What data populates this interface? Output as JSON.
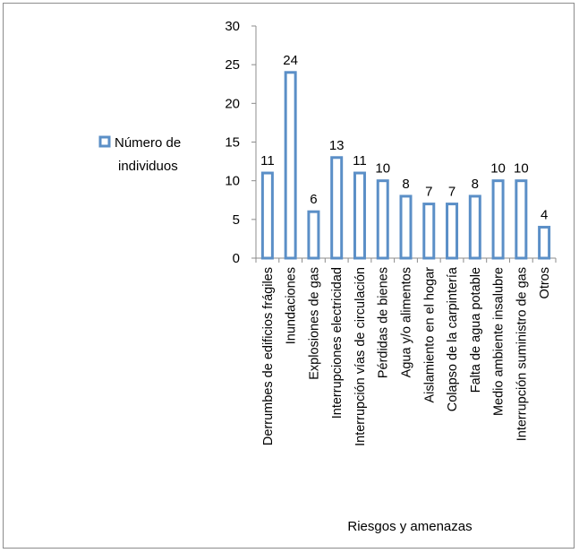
{
  "chart_data": {
    "type": "bar",
    "categories": [
      "Derrumbes de edificios frágiles",
      "Inundaciones",
      "Explosiones de gas",
      "Interrupciones electricidad",
      "Interrupción vías de circulación",
      "Pérdidas de bienes",
      "Agua y/o alimentos",
      "Aislamiento en el hogar",
      "Colapso de la carpintería",
      "Falta de agua potable",
      "Medio ambiente insalubre",
      "Interrupción suministro de gas",
      "Otros"
    ],
    "series": [
      {
        "name": "Número de individuos",
        "values": [
          11,
          24,
          6,
          13,
          11,
          10,
          8,
          7,
          7,
          8,
          10,
          10,
          4
        ]
      }
    ],
    "data_labels": [
      "11",
      "24",
      "6",
      "13",
      "11",
      "10",
      "8",
      "7",
      "7",
      "8",
      "10",
      "10",
      "4"
    ],
    "title": "",
    "xlabel": "Riesgos y amenazas",
    "ylabel": "",
    "ylim": [
      0,
      30
    ],
    "yticks": [
      0,
      5,
      10,
      15,
      20,
      25,
      30
    ],
    "ytick_labels": [
      "0",
      "5",
      "10",
      "15",
      "20",
      "25",
      "30"
    ],
    "legend": {
      "position": "left",
      "lines": [
        "Número de",
        "individuos"
      ]
    },
    "grid": false,
    "colors": {
      "bar_fill": "#ffffff",
      "bar_stroke": "#5b8fc7",
      "axis": "#8c8c8c"
    }
  }
}
